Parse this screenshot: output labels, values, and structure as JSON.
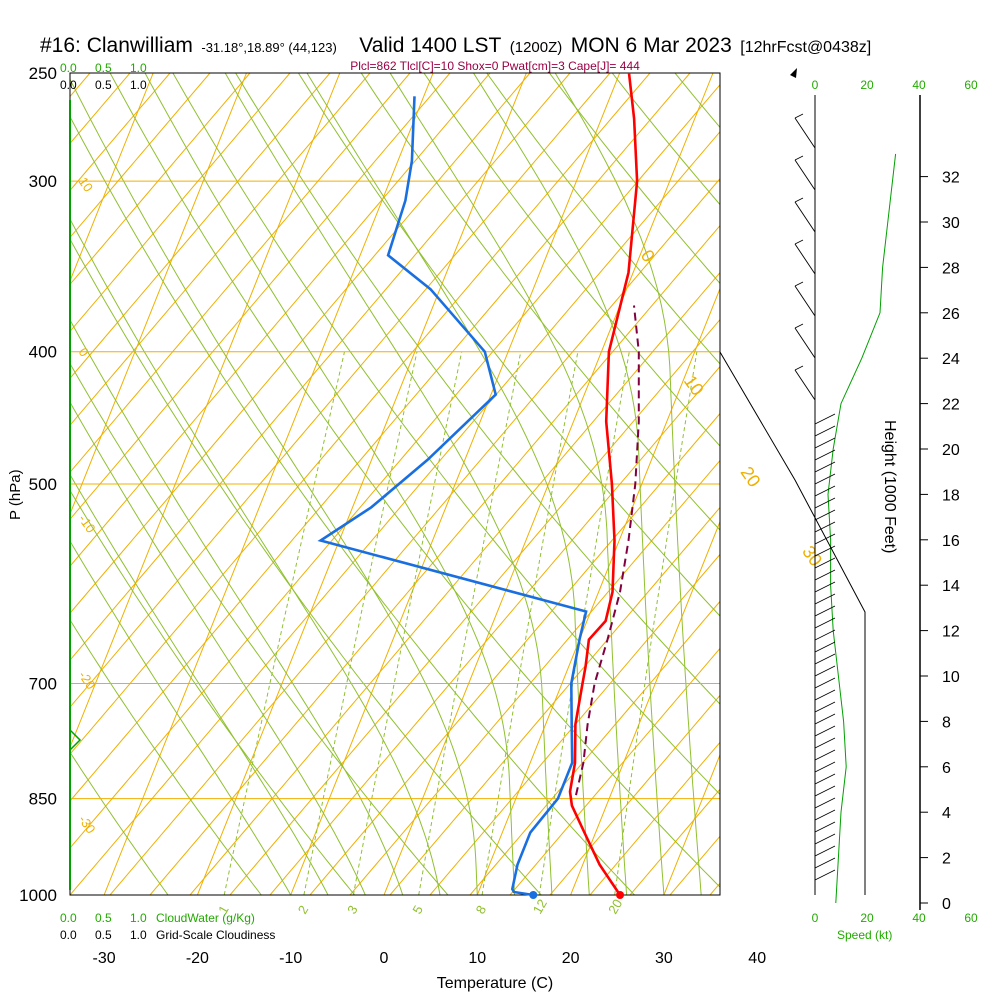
{
  "header": {
    "station": "#16: Clanwilliam",
    "coords": "-31.18°,18.89° (44,123)",
    "valid": "Valid 1400 LST",
    "zulu": "(1200Z)",
    "date": "MON 6 Mar 2023",
    "forecast": "[12hrFcst@0438z]",
    "indices": "Plcl=862 Tlcl[C]=10 Shox=0 Pwat[cm]=3 Cape[J]= 444"
  },
  "colors": {
    "temperature": "#ff0000",
    "dewpoint": "#1a6fe0",
    "parcel": "#800040",
    "isobar": "#f0b000",
    "isotherm": "#f0b000",
    "dry_adiabat": "#90c030",
    "moist_adiabat": "#90c030",
    "mixing_ratio": "#90c030",
    "cloud": "#00a000",
    "wind_speed": "#00a000",
    "text_green": "#22aa00",
    "indices_text": "#990044"
  },
  "chart_data": {
    "type": "line",
    "title": "#16: Clanwilliam -31.18°,18.89° (44,123) Valid 1400 LST (1200Z) MON 6 Mar 2023 [12hrFcst@0438z]",
    "xlabel": "Temperature (C)",
    "ylabel": "P (hPa)",
    "right_ylabel": "Height (1000 Feet)",
    "xlim": [
      -30,
      40
    ],
    "pressure_range": [
      1000,
      250
    ],
    "x_ticks": [
      "-30",
      "-20",
      "-10",
      "0",
      "10",
      "20",
      "30",
      "40"
    ],
    "y_ticks": [
      {
        "p": 1000,
        "label": "1000"
      },
      {
        "p": 850,
        "label": "850"
      },
      {
        "p": 700,
        "label": "700"
      },
      {
        "p": 500,
        "label": "500"
      },
      {
        "p": 400,
        "label": "400"
      },
      {
        "p": 300,
        "label": "300"
      },
      {
        "p": 250,
        "label": "250"
      }
    ],
    "height_ticks": [
      "0",
      "2",
      "4",
      "6",
      "8",
      "10",
      "12",
      "14",
      "16",
      "18",
      "20",
      "22",
      "24",
      "26",
      "28",
      "30",
      "32"
    ],
    "isotherm_labels": [
      {
        "t": 10,
        "p": 300,
        "label": "10"
      },
      {
        "t": 0,
        "p": 400,
        "label": "0"
      },
      {
        "t": -10,
        "p": 530,
        "label": "-10"
      },
      {
        "t": -20,
        "p": 690,
        "label": "-20"
      },
      {
        "t": -30,
        "p": 880,
        "label": "-30"
      },
      {
        "t": 0,
        "p": 340,
        "label": "0"
      },
      {
        "t": 10,
        "p": 420,
        "label": "10"
      },
      {
        "t": 20,
        "p": 490,
        "label": "20"
      },
      {
        "t": 30,
        "p": 560,
        "label": "30"
      }
    ],
    "mixing_ratio_labels": [
      "1",
      "2",
      "3",
      "5",
      "8",
      "12",
      "20"
    ],
    "series": [
      {
        "name": "Temperature",
        "values": [
          {
            "p": 1000,
            "t": 25.3
          },
          {
            "p": 950,
            "t": 21.8
          },
          {
            "p": 900,
            "t": 18.8
          },
          {
            "p": 860,
            "t": 16.3
          },
          {
            "p": 840,
            "t": 15.5
          },
          {
            "p": 800,
            "t": 14.8
          },
          {
            "p": 750,
            "t": 13.2
          },
          {
            "p": 700,
            "t": 12.2
          },
          {
            "p": 680,
            "t": 11.8
          },
          {
            "p": 650,
            "t": 11.0
          },
          {
            "p": 630,
            "t": 12.0
          },
          {
            "p": 600,
            "t": 11.5
          },
          {
            "p": 550,
            "t": 9.5
          },
          {
            "p": 500,
            "t": 6.8
          },
          {
            "p": 450,
            "t": 3.5
          },
          {
            "p": 400,
            "t": 0.8
          },
          {
            "p": 350,
            "t": -0.5
          },
          {
            "p": 300,
            "t": -3.5
          },
          {
            "p": 270,
            "t": -6.5
          },
          {
            "p": 250,
            "t": -9.0
          }
        ]
      },
      {
        "name": "Dewpoint",
        "values": [
          {
            "p": 1000,
            "t": 16.0
          },
          {
            "p": 995,
            "t": 13.8
          },
          {
            "p": 990,
            "t": 13.5
          },
          {
            "p": 950,
            "t": 13.0
          },
          {
            "p": 900,
            "t": 13.0
          },
          {
            "p": 850,
            "t": 14.5
          },
          {
            "p": 800,
            "t": 14.5
          },
          {
            "p": 750,
            "t": 12.8
          },
          {
            "p": 700,
            "t": 11.0
          },
          {
            "p": 650,
            "t": 10.0
          },
          {
            "p": 620,
            "t": 9.5
          },
          {
            "p": 550,
            "t": -22.0
          },
          {
            "p": 520,
            "t": -18.0
          },
          {
            "p": 480,
            "t": -14.0
          },
          {
            "p": 430,
            "t": -9.5
          },
          {
            "p": 400,
            "t": -12.5
          },
          {
            "p": 360,
            "t": -21.0
          },
          {
            "p": 340,
            "t": -27.0
          },
          {
            "p": 310,
            "t": -27.5
          },
          {
            "p": 290,
            "t": -28.5
          },
          {
            "p": 260,
            "t": -31.0
          }
        ]
      },
      {
        "name": "Parcel",
        "values": [
          {
            "p": 845,
            "t": 16.3
          },
          {
            "p": 800,
            "t": 15.7
          },
          {
            "p": 750,
            "t": 14.5
          },
          {
            "p": 700,
            "t": 13.5
          },
          {
            "p": 650,
            "t": 13.0
          },
          {
            "p": 600,
            "t": 12.3
          },
          {
            "p": 550,
            "t": 11.0
          },
          {
            "p": 500,
            "t": 9.3
          },
          {
            "p": 450,
            "t": 7.0
          },
          {
            "p": 400,
            "t": 4.0
          },
          {
            "p": 370,
            "t": 1.5
          }
        ]
      }
    ],
    "surface_points": [
      {
        "name": "Surface temperature",
        "p": 1000,
        "t": 25.3
      },
      {
        "name": "Surface dewpoint",
        "p": 1000,
        "t": 16.0
      }
    ],
    "cloud_scales": {
      "top_cloudwater": [
        "0.0",
        "0.5",
        "1.0"
      ],
      "top_cloudiness": [
        "0.0",
        "0.5",
        "1.0"
      ],
      "bottom_cloudwater": [
        "0.0",
        "0.5",
        "1.0"
      ],
      "bottom_cloudiness": [
        "0.0",
        "0.5",
        "1.0"
      ],
      "cloudwater_label": "CloudWater (g/Kg)",
      "cloudiness_label": "Grid-Scale Cloudiness"
    },
    "wind": {
      "speed_ticks": [
        "0",
        "20",
        "40",
        "60"
      ],
      "speed_label": "Speed (kt)",
      "speed_profile_kt": [
        {
          "h": 0,
          "v": 8
        },
        {
          "h": 2,
          "v": 9
        },
        {
          "h": 4,
          "v": 10
        },
        {
          "h": 6,
          "v": 12
        },
        {
          "h": 8,
          "v": 11
        },
        {
          "h": 10,
          "v": 9
        },
        {
          "h": 12,
          "v": 7
        },
        {
          "h": 14,
          "v": 6
        },
        {
          "h": 16,
          "v": 6
        },
        {
          "h": 18,
          "v": 5
        },
        {
          "h": 20,
          "v": 7
        },
        {
          "h": 22,
          "v": 10
        },
        {
          "h": 24,
          "v": 18
        },
        {
          "h": 26,
          "v": 25
        },
        {
          "h": 28,
          "v": 26
        },
        {
          "h": 30,
          "v": 28
        },
        {
          "h": 32,
          "v": 30
        },
        {
          "h": 33,
          "v": 31
        }
      ]
    }
  }
}
